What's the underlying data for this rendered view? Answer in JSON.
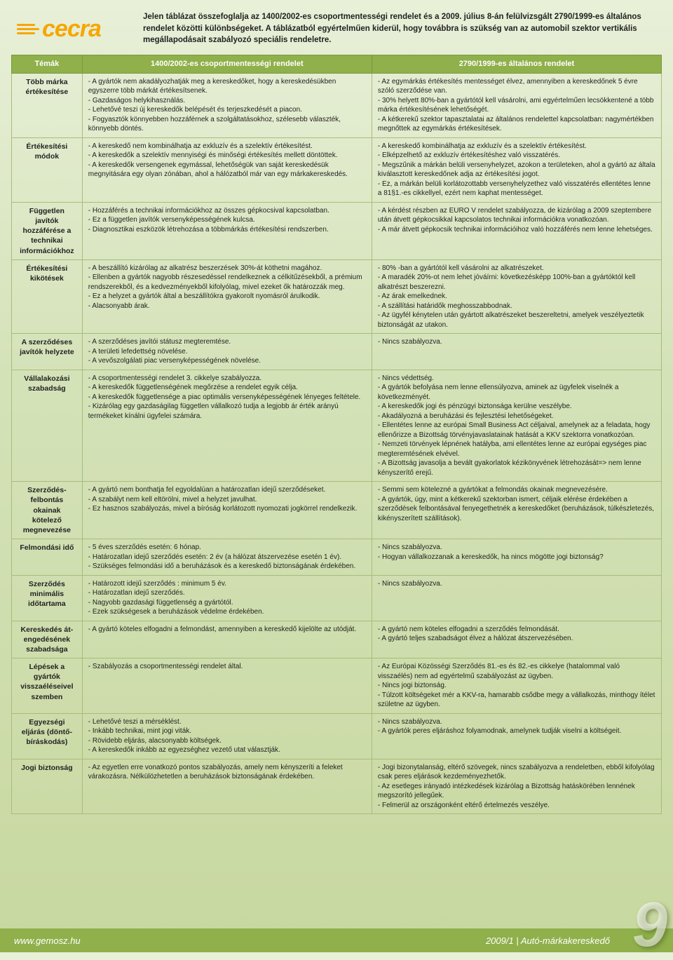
{
  "logo_text": "cecra",
  "intro": "Jelen táblázat összefoglalja az 1400/2002-es csoportmentességi rendelet és a 2009. július 8-án felülvizsgált 2790/1999-es általános rendelet közötti különbségeket. A táblázatból egyértelműen kiderül, hogy továbbra is szükség van az automobil szektor vertikális megállapodásait szabályozó speciális rendeletre.",
  "headers": {
    "topics": "Témák",
    "col1400": "1400/2002-es csoportmentességi rendelet",
    "col2790": "2790/1999-es általános rendelet"
  },
  "rows": [
    {
      "topic": "Több márka értékesítése",
      "c1": "- A gyártók nem akadályozhatják meg a kereskedőket, hogy a kereskedésükben egyszerre több márkát értékesítsenek.\n- Gazdaságos helykihasználás.\n- Lehetővé teszi új kereskedők belépését és terjeszkedését a piacon.\n- Fogyasztók könnyebben hozzáférnek a szolgáltatásokhoz, szélesebb választék, könnyebb döntés.",
      "c2": "- Az egymárkás értékesítés mentességet élvez, amennyiben a kereskedőnek 5 évre szóló szerződése van.\n- 30% helyett 80%-ban a gyártótól kell vásárolni, ami egyértelműen lecsökkentené a több márka értékesítésének lehetőségét.\n- A kétkerekű szektor tapasztalatai az általános rendelettel kapcsolatban: nagymértékben megnőttek az egymárkás értékesítések."
    },
    {
      "topic": "Értékesítési módok",
      "c1": "- A kereskedő nem kombinálhatja az exkluzív és a szelektív értékesítést.\n- A kereskedők a szelektív mennyiségi és minőségi értékesítés mellett döntöttek.\n- A kereskedők versengenek egymással, lehetőségük van saját kereskedésük megnyitására egy olyan zónában, ahol a hálózatból már van egy márkakereskedés.",
      "c2": "- A kereskedő kombinálhatja az exkluzív és a szelektív értékesítést.\n- Elképzelhető az exkluzív értékesítéshez való visszatérés.\n- Megszűnik a márkán belüli versenyhelyzet, azokon a területeken, ahol a gyártó az általa kiválasztott kereskedőnek adja az értékesítési jogot.\n- Ez, a márkán belüli korlátozottabb versenyhelyzethez való visszatérés ellentétes lenne a 81§1.-es cikkellyel, ezért nem kaphat mentességet."
    },
    {
      "topic": "Független javítók hozzáférése a technikai információkhoz",
      "c1": "- Hozzáférés a technikai információkhoz az összes gépkocsival kapcsolatban.\n- Ez a független javítók versenyképességének kulcsa.\n- Diagnosztikai eszközök létrehozása a többmárkás értékesítési rendszerben.",
      "c2": "- A kérdést részben az EURO V rendelet szabályozza, de kizárólag a 2009 szeptembere után átvett gépkocsikkal kapcsolatos technikai információkra vonatkozóan.\n- A már átvett gépkocsik technikai információihoz való hozzáférés nem lenne lehetséges.",
      "sep": true
    },
    {
      "topic": "Értékesítési kikötések",
      "c1": "- A beszállító kizárólag az alkatrész beszerzések 30%-át köthetni magához.\n- Ellenben a gyártók nagyobb részesedéssel rendelkeznek a célkitűzésekből, a prémium rendszerekből, és a kedvezményekből kifolyólag, mivel ezeket ők határozzák meg.\n- Ez a helyzet a gyártók által a beszállítókra gyakorolt nyomásról árulkodik.\n- Alacsonyabb árak.",
      "c2": "- 80% -ban a gyártótól kell vásárolni az alkatrészeket.\n- A maradék 20%-ot nem lehet jóváírni: következésképp 100%-ban a gyártóktól kell alkatrészt beszerezni.\n- Az árak emelkednek.\n- A szállítási határidők meghosszabbodnak.\n- Az ügyfél kénytelen után gyártott alkatrészeket beszereltetni, amelyek veszélyeztetik biztonságát az utakon."
    },
    {
      "topic": "A szerződéses javítók helyzete",
      "c1": "- A szerződéses javítói státusz megteremtése.\n- A területi lefedettség növelése.\n- A vevőszolgálati piac versenyképességének növelése.",
      "c2": "- Nincs szabályozva.",
      "sep": true
    },
    {
      "topic": "Vállalakozási szabadság",
      "c1": "- A csoportmentességi rendelet 3. cikkelye szabályozza.\n- A kereskedők függetlenségének megőrzése a rendelet egyik célja.\n- A kereskedők függetlensége a piac optimális versenyképességének lényeges feltétele.\n- Kizárólag egy gazdaságilag független vállalkozó tudja a legjobb ár érték arányú termékeket kínálni ügyfelei számára.",
      "c2": "- Nincs védettség.\n- A gyártók befolyása nem lenne ellensúlyozva, aminek az ügyfelek viselnék a következményét.\n- A kereskedők jogi és pénzügyi biztonsága kerülne veszélybe.\n- Akadályozná a beruházási és fejlesztési lehetőségeket.\n- Ellentétes lenne az európai Small Business Act céljaival, amelynek az a feladata, hogy ellenőrizze a Bizottság törvényjavaslatainak hatását a KKV szektorra vonatkozóan.\n- Nemzeti törvények lépnének hatályba, ami ellentétes lenne az európai egységes piac megteremtésének elvével.\n- A Bizottság javasolja a bevált gyakorlatok kézikönyvének létrehozását=> nem lenne kényszerítő erejű."
    },
    {
      "topic": "Szerződés-felbontás okainak kötelező megnevezése",
      "c1": "- A gyártó nem bonthatja fel egyoldalúan a határozatlan idejű szerződéseket.\n- A szabályt nem kell eltörölni, mivel a helyzet javulhat.\n- Ez hasznos szabályozás, mivel a bíróság korlátozott nyomozati jogkörrel rendelkezik.",
      "c2": "- Semmi sem kötelezné a gyártókat a felmondás okainak megnevezésére.\n- A gyártók, úgy, mint a kétkerekű szektorban ismert, céljaik elérése érdekében a szerződések felbontásával fenyegethetnék a kereskedőket (beruházások, túlkészletezés, kikényszerített szállítások)."
    },
    {
      "topic": "Felmondási idő",
      "c1": "- 5 éves szerződés esetén: 6 hónap.\n- Határozatlan idejű szerződés esetén: 2 év (a hálózat átszervezése esetén 1 év).\n- Szükséges felmondási idő a beruházások és a kereskedő biztonságának érdekében.",
      "c2": "- Nincs szabályozva.\n- Hogyan vállalkozzanak a kereskedők, ha nincs mögötte jogi biztonság?"
    },
    {
      "topic": "Szerződés minimális időtartama",
      "c1": "- Határozott idejű szerződés : minimum 5 év.\n- Határozatlan idejű szerződés.\n- Nagyobb gazdasági függetlenség a gyártótól.\n- Ezek szükségesek a beruházások védelme érdekében.",
      "c2": "- Nincs szabályozva."
    },
    {
      "topic": "Kereskedés át-engedésének szabadsága",
      "c1": "- A gyártó köteles elfogadni a felmondást, amennyiben a kereskedő kijelölte az utódját.",
      "c2": "- A gyártó nem köteles elfogadni a szerződés felmondását.\n- A gyártó teljes szabadságot élvez a hálózat átszervezésében."
    },
    {
      "topic": "Lépések a gyártók visszaéléseivel szemben",
      "c1": "- Szabályozás a csoportmentességi rendelet által.",
      "c2": "- Az Európai Közösségi Szerződés 81.-es és 82.-es cikkelye (hatalommal való visszaélés) nem ad egyértelmű szabályozást az ügyben.\n- Nincs jogi biztonság.\n- Túlzott költségeket mér a KKV-ra, hamarabb csődbe megy a vállalkozás, minthogy ítélet születne az ügyben."
    },
    {
      "topic": "Egyezségi eljárás (döntő-bíráskodás)",
      "c1": "- Lehetővé teszi a mérséklést.\n- Inkább technikai, mint jogi viták.\n- Rövidebb eljárás, alacsonyabb költségek.\n- A kereskedők inkább az egyezséghez vezető utat választják.",
      "c2": "- Nincs szabályozva.\n- A gyártók peres eljáráshoz folyamodnak, amelynek tudják viselni a költségeit."
    },
    {
      "topic": "Jogi biztonság",
      "c1": "- Az egyetlen erre vonatkozó pontos szabályozás, amely nem kényszeríti a feleket várakozásra. Nélkülözhetetlen a beruházások biztonságának érdekében.",
      "c2": "- Jogi bizonytalanság, eltérő szövegek, nincs szabályozva a rendeletben, ebből kifolyólag csak peres eljárások kezdeményezhetők.\n- Az esetleges irányadó intézkedések kizárólag a Bizottság hatáskörében lennének megszorító jellegűek.\n- Felmerül az országonként eltérő értelmezés veszélye."
    }
  ],
  "footer": {
    "left": "www.gemosz.hu",
    "right": "2009/1 | Autó-márkakereskedő",
    "page": "9"
  },
  "colors": {
    "accent": "#8fb04a",
    "logo": "#f7a600"
  }
}
